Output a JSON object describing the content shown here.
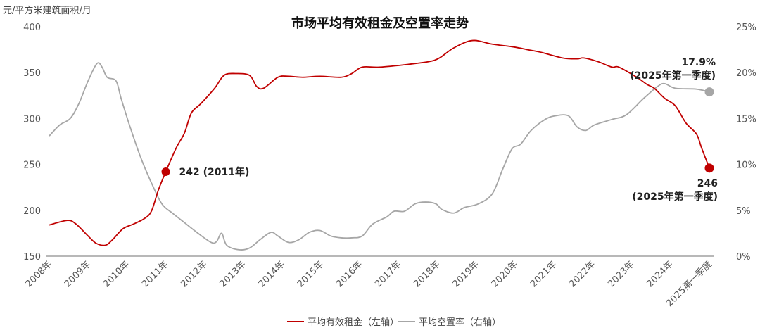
{
  "chart_data": {
    "type": "line",
    "title": "市场平均有效租金及空置率走势",
    "ylabel_left": "元/平方米建筑面积/月",
    "ylim_left": [
      150,
      400
    ],
    "yticks_left": [
      "400",
      "350",
      "300",
      "250",
      "200",
      "150"
    ],
    "ylim_right": [
      0,
      25
    ],
    "yticks_right": [
      "25%",
      "20%",
      "15%",
      "10%",
      "5%",
      "0%"
    ],
    "xticks": [
      "2008年",
      "2009年",
      "2010年",
      "2011年",
      "2012年",
      "2013年",
      "2014年",
      "2015年",
      "2016年",
      "2017年",
      "2018年",
      "2019年",
      "2020年",
      "2021年",
      "2022年",
      "2023年",
      "2024年",
      "2025第一季度"
    ],
    "grid": false,
    "legend_position": "bottom",
    "series": [
      {
        "name": "平均有效租金（左轴）",
        "axis": "left",
        "color": "#c00000",
        "points": [
          [
            2008.0,
            184
          ],
          [
            2008.47,
            189
          ],
          [
            2008.69,
            185
          ],
          [
            2009.0,
            172
          ],
          [
            2009.21,
            164
          ],
          [
            2009.45,
            162
          ],
          [
            2009.63,
            168
          ],
          [
            2009.9,
            180
          ],
          [
            2010.17,
            185
          ],
          [
            2010.45,
            191
          ],
          [
            2010.63,
            199
          ],
          [
            2010.81,
            222
          ],
          [
            2011.0,
            242
          ],
          [
            2011.27,
            268
          ],
          [
            2011.48,
            284
          ],
          [
            2011.66,
            306
          ],
          [
            2011.9,
            316
          ],
          [
            2012.26,
            333
          ],
          [
            2012.5,
            347
          ],
          [
            2012.8,
            349
          ],
          [
            2013.16,
            347
          ],
          [
            2013.34,
            335
          ],
          [
            2013.52,
            333
          ],
          [
            2013.89,
            345
          ],
          [
            2014.16,
            346
          ],
          [
            2014.52,
            345
          ],
          [
            2014.97,
            346
          ],
          [
            2015.52,
            345
          ],
          [
            2015.79,
            349
          ],
          [
            2016.06,
            356
          ],
          [
            2016.5,
            356
          ],
          [
            2017.24,
            359
          ],
          [
            2017.78,
            362
          ],
          [
            2018.05,
            366
          ],
          [
            2018.42,
            377
          ],
          [
            2018.9,
            385
          ],
          [
            2019.41,
            381
          ],
          [
            2019.96,
            378
          ],
          [
            2020.32,
            375
          ],
          [
            2020.68,
            372
          ],
          [
            2021.22,
            366
          ],
          [
            2021.59,
            365
          ],
          [
            2021.77,
            366
          ],
          [
            2022.13,
            362
          ],
          [
            2022.49,
            356
          ],
          [
            2022.67,
            356
          ],
          [
            2023.13,
            345
          ],
          [
            2023.4,
            337
          ],
          [
            2023.58,
            333
          ],
          [
            2023.85,
            322
          ],
          [
            2024.12,
            314
          ],
          [
            2024.4,
            295
          ],
          [
            2024.67,
            283
          ],
          [
            2024.8,
            268
          ],
          [
            2025.0,
            246
          ]
        ]
      },
      {
        "name": "平均空置率（右轴）",
        "axis": "right",
        "color": "#a6a6a6",
        "points": [
          [
            2008.0,
            13.1
          ],
          [
            2008.27,
            14.3
          ],
          [
            2008.54,
            15.0
          ],
          [
            2008.76,
            16.6
          ],
          [
            2009.0,
            19.1
          ],
          [
            2009.23,
            21.0
          ],
          [
            2009.36,
            20.6
          ],
          [
            2009.49,
            19.5
          ],
          [
            2009.72,
            19.1
          ],
          [
            2009.85,
            17.2
          ],
          [
            2010.08,
            14.1
          ],
          [
            2010.36,
            10.7
          ],
          [
            2010.63,
            8.0
          ],
          [
            2010.9,
            5.7
          ],
          [
            2011.17,
            4.7
          ],
          [
            2011.44,
            3.8
          ],
          [
            2011.8,
            2.6
          ],
          [
            2012.17,
            1.5
          ],
          [
            2012.31,
            1.6
          ],
          [
            2012.44,
            2.5
          ],
          [
            2012.57,
            1.2
          ],
          [
            2012.89,
            0.7
          ],
          [
            2013.16,
            0.9
          ],
          [
            2013.43,
            1.8
          ],
          [
            2013.71,
            2.6
          ],
          [
            2013.89,
            2.2
          ],
          [
            2014.16,
            1.5
          ],
          [
            2014.43,
            1.8
          ],
          [
            2014.7,
            2.6
          ],
          [
            2014.97,
            2.8
          ],
          [
            2015.25,
            2.2
          ],
          [
            2015.52,
            2.0
          ],
          [
            2015.79,
            2.0
          ],
          [
            2016.06,
            2.2
          ],
          [
            2016.33,
            3.5
          ],
          [
            2016.7,
            4.3
          ],
          [
            2016.88,
            4.9
          ],
          [
            2017.15,
            4.9
          ],
          [
            2017.42,
            5.7
          ],
          [
            2017.69,
            5.9
          ],
          [
            2017.96,
            5.7
          ],
          [
            2018.11,
            5.1
          ],
          [
            2018.42,
            4.7
          ],
          [
            2018.69,
            5.3
          ],
          [
            2019.05,
            5.7
          ],
          [
            2019.41,
            6.8
          ],
          [
            2019.68,
            9.5
          ],
          [
            2019.92,
            11.7
          ],
          [
            2020.14,
            12.2
          ],
          [
            2020.41,
            13.7
          ],
          [
            2020.77,
            14.9
          ],
          [
            2021.04,
            15.3
          ],
          [
            2021.37,
            15.3
          ],
          [
            2021.59,
            14.1
          ],
          [
            2021.82,
            13.7
          ],
          [
            2022.04,
            14.3
          ],
          [
            2022.49,
            14.9
          ],
          [
            2022.86,
            15.4
          ],
          [
            2023.31,
            17.2
          ],
          [
            2023.67,
            18.5
          ],
          [
            2023.85,
            18.8
          ],
          [
            2024.12,
            18.3
          ],
          [
            2024.67,
            18.2
          ],
          [
            2025.0,
            17.9
          ]
        ]
      }
    ],
    "annotations": [
      {
        "series": 0,
        "x": 2011.0,
        "y": 242,
        "text": "242 (2011年)"
      },
      {
        "series": 1,
        "x": 2025.0,
        "y": 17.9,
        "text_value": "17.9%",
        "text_period": "(2025年第一季度)"
      },
      {
        "series": 0,
        "x": 2025.0,
        "y": 246,
        "text_value": "246",
        "text_period": "(2025年第一季度)"
      }
    ]
  }
}
